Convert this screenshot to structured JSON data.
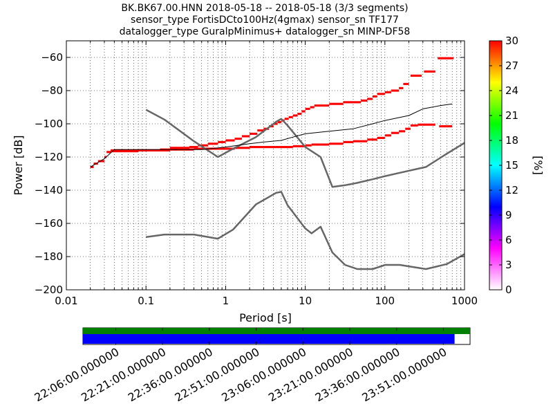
{
  "title_lines": [
    "BK.BK67.00.HNN   2018-05-18 -- 2018-05-18  (3/3 segments)",
    "sensor_type FortisDCto100Hz(4gmax) sensor_sn TF177",
    "datalogger_type GuralpMinimus+ datalogger_sn MINP-DF58"
  ],
  "colorbar": {
    "label": "[%]",
    "ticks": [
      "0",
      "3",
      "6",
      "9",
      "12",
      "15",
      "18",
      "21",
      "24",
      "27",
      "30"
    ],
    "stops": [
      "#ffffff",
      "#ff00ff",
      "#0000ff",
      "#00ffff",
      "#00ff00",
      "#ffff00",
      "#ff0000"
    ]
  },
  "timeline": {
    "labels": [
      "22:06:00.000000",
      "22:21:00.000000",
      "22:36:00.000000",
      "22:51:00.000000",
      "23:06:00.000000",
      "23:21:00.000000",
      "23:36:00.000000",
      "23:51:00.000000"
    ],
    "bar_colors": {
      "top": "#008000",
      "bottom": "#0000ff"
    },
    "coverage_fraction_top": 1.0,
    "coverage_fraction_bottom": 0.96
  },
  "chart_data": {
    "type": "line",
    "xlabel": "Period [s]",
    "ylabel": "Power [dB]",
    "x_scale": "log",
    "xlim": [
      0.01,
      1000
    ],
    "ylim": [
      -200,
      -50
    ],
    "x_ticks": [
      {
        "v": 0.01,
        "label": "0.01"
      },
      {
        "v": 0.1,
        "label": "0.1"
      },
      {
        "v": 1,
        "label": "1"
      },
      {
        "v": 10,
        "label": "10"
      },
      {
        "v": 100,
        "label": "100"
      },
      {
        "v": 1000,
        "label": "1000"
      }
    ],
    "y_ticks": [
      {
        "v": -200,
        "label": "−200"
      },
      {
        "v": -180,
        "label": "−180"
      },
      {
        "v": -160,
        "label": "−160"
      },
      {
        "v": -140,
        "label": "−140"
      },
      {
        "v": -120,
        "label": "−120"
      },
      {
        "v": -100,
        "label": "−100"
      },
      {
        "v": -80,
        "label": "−80"
      },
      {
        "v": -60,
        "label": "−60"
      }
    ],
    "grid": true,
    "series": [
      {
        "color": "#666666",
        "points": [
          [
            0.1,
            -91.5
          ],
          [
            0.17,
            -97.4
          ],
          [
            0.4,
            -110.5
          ],
          [
            0.8,
            -120
          ],
          [
            1.24,
            -115
          ],
          [
            2.4,
            -108
          ],
          [
            4.3,
            -98.8
          ],
          [
            5,
            -97
          ],
          [
            6,
            -101
          ],
          [
            10,
            -114
          ],
          [
            15.6,
            -120
          ],
          [
            21.9,
            -138
          ],
          [
            31.6,
            -137
          ],
          [
            45,
            -135.6
          ],
          [
            70,
            -133.4
          ],
          [
            101,
            -131.5
          ],
          [
            154,
            -129.5
          ],
          [
            328,
            -126
          ],
          [
            600,
            -118
          ],
          [
            1000,
            -111.5
          ]
        ]
      },
      {
        "color": "#666666",
        "points": [
          [
            0.1,
            -168.2
          ],
          [
            0.17,
            -166.7
          ],
          [
            0.4,
            -166.7
          ],
          [
            0.8,
            -169.2
          ],
          [
            1.24,
            -163.7
          ],
          [
            2.4,
            -148.6
          ],
          [
            4.3,
            -141.6
          ],
          [
            5,
            -141
          ],
          [
            6,
            -149
          ],
          [
            10,
            -163
          ],
          [
            12,
            -166
          ],
          [
            15.6,
            -162
          ],
          [
            21.9,
            -177.5
          ],
          [
            31.6,
            -185
          ],
          [
            45,
            -187.5
          ],
          [
            70,
            -187.5
          ],
          [
            101,
            -185
          ],
          [
            154,
            -185
          ],
          [
            328,
            -187.5
          ],
          [
            600,
            -184.5
          ],
          [
            1000,
            -178.5
          ]
        ]
      },
      {
        "color": "#000000",
        "points": [
          [
            0.02,
            -126
          ],
          [
            0.03,
            -121
          ],
          [
            0.04,
            -115.5
          ],
          [
            0.2,
            -115.5
          ],
          [
            0.5,
            -115.5
          ],
          [
            1,
            -114
          ],
          [
            2,
            -112
          ],
          [
            3,
            -111
          ],
          [
            5,
            -110
          ],
          [
            7,
            -108
          ],
          [
            10,
            -106
          ],
          [
            20,
            -104.5
          ],
          [
            40,
            -103
          ],
          [
            70,
            -100
          ],
          [
            100,
            -98
          ],
          [
            200,
            -95
          ],
          [
            300,
            -91
          ],
          [
            500,
            -89
          ],
          [
            700,
            -88
          ]
        ]
      }
    ],
    "histogram_segments": [
      {
        "x0": 0.02,
        "x1": 0.022,
        "y": -126
      },
      {
        "x0": 0.022,
        "x1": 0.025,
        "y": -124
      },
      {
        "x0": 0.025,
        "x1": 0.03,
        "y": -122.5
      },
      {
        "x0": 0.03,
        "x1": 0.032,
        "y": -120
      },
      {
        "x0": 0.032,
        "x1": 0.036,
        "y": -117
      },
      {
        "x0": 0.036,
        "x1": 0.2,
        "y": -116
      },
      {
        "x0": 0.2,
        "x1": 0.35,
        "y": -114.5
      },
      {
        "x0": 0.35,
        "x1": 0.45,
        "y": -114
      },
      {
        "x0": 0.45,
        "x1": 0.6,
        "y": -113
      },
      {
        "x0": 0.6,
        "x1": 0.8,
        "y": -112
      },
      {
        "x0": 0.8,
        "x1": 1.0,
        "y": -111
      },
      {
        "x0": 1.0,
        "x1": 1.3,
        "y": -110
      },
      {
        "x0": 1.3,
        "x1": 1.6,
        "y": -109
      },
      {
        "x0": 1.6,
        "x1": 2.0,
        "y": -107.5
      },
      {
        "x0": 2.0,
        "x1": 2.5,
        "y": -106
      },
      {
        "x0": 2.5,
        "x1": 3.0,
        "y": -104
      },
      {
        "x0": 3.0,
        "x1": 3.5,
        "y": -103
      },
      {
        "x0": 3.5,
        "x1": 4.0,
        "y": -101.5
      },
      {
        "x0": 4.0,
        "x1": 4.5,
        "y": -100
      },
      {
        "x0": 4.5,
        "x1": 5.0,
        "y": -99
      },
      {
        "x0": 5.0,
        "x1": 5.5,
        "y": -98
      },
      {
        "x0": 5.5,
        "x1": 6.2,
        "y": -97
      },
      {
        "x0": 6.2,
        "x1": 7.0,
        "y": -96
      },
      {
        "x0": 7.0,
        "x1": 8.0,
        "y": -95
      },
      {
        "x0": 8.0,
        "x1": 9.0,
        "y": -94
      },
      {
        "x0": 9.0,
        "x1": 10.0,
        "y": -92.5
      },
      {
        "x0": 10.0,
        "x1": 11.5,
        "y": -91
      },
      {
        "x0": 11.5,
        "x1": 13.0,
        "y": -90
      },
      {
        "x0": 13.0,
        "x1": 20.0,
        "y": -89
      },
      {
        "x0": 20.0,
        "x1": 30.0,
        "y": -88
      },
      {
        "x0": 30.0,
        "x1": 50.0,
        "y": -87
      },
      {
        "x0": 50.0,
        "x1": 60.0,
        "y": -86
      },
      {
        "x0": 60.0,
        "x1": 70.0,
        "y": -85
      },
      {
        "x0": 70.0,
        "x1": 80.0,
        "y": -83.5
      },
      {
        "x0": 80.0,
        "x1": 100.0,
        "y": -82
      },
      {
        "x0": 100.0,
        "x1": 120.0,
        "y": -81
      },
      {
        "x0": 120.0,
        "x1": 150.0,
        "y": -80
      },
      {
        "x0": 150.0,
        "x1": 170.0,
        "y": -78.5
      },
      {
        "x0": 170.0,
        "x1": 200.0,
        "y": -76
      },
      {
        "x0": 210.0,
        "x1": 290.0,
        "y": -71
      },
      {
        "x0": 310.0,
        "x1": 430.0,
        "y": -68.5
      },
      {
        "x0": 460.0,
        "x1": 730.0,
        "y": -60.5
      },
      {
        "x0": 0.036,
        "x1": 0.08,
        "y": -116.5
      },
      {
        "x0": 0.08,
        "x1": 0.15,
        "y": -116
      },
      {
        "x0": 0.15,
        "x1": 0.4,
        "y": -115.5
      },
      {
        "x0": 0.4,
        "x1": 0.9,
        "y": -115
      },
      {
        "x0": 0.9,
        "x1": 1.3,
        "y": -115
      },
      {
        "x0": 1.3,
        "x1": 2.0,
        "y": -114.5
      },
      {
        "x0": 2.0,
        "x1": 3.0,
        "y": -114
      },
      {
        "x0": 3.0,
        "x1": 7.0,
        "y": -114
      },
      {
        "x0": 7.0,
        "x1": 10.0,
        "y": -113.5
      },
      {
        "x0": 10.0,
        "x1": 12.0,
        "y": -113
      },
      {
        "x0": 12.0,
        "x1": 20.0,
        "y": -112.5
      },
      {
        "x0": 20.0,
        "x1": 30.0,
        "y": -112
      },
      {
        "x0": 30.0,
        "x1": 40.0,
        "y": -111
      },
      {
        "x0": 40.0,
        "x1": 60.0,
        "y": -110.5
      },
      {
        "x0": 60.0,
        "x1": 80.0,
        "y": -109.5
      },
      {
        "x0": 80.0,
        "x1": 100.0,
        "y": -108.5
      },
      {
        "x0": 100.0,
        "x1": 120.0,
        "y": -107
      },
      {
        "x0": 120.0,
        "x1": 150.0,
        "y": -105.5
      },
      {
        "x0": 150.0,
        "x1": 180.0,
        "y": -104.5
      },
      {
        "x0": 180.0,
        "x1": 210.0,
        "y": -103
      },
      {
        "x0": 210.0,
        "x1": 260.0,
        "y": -101
      },
      {
        "x0": 260.0,
        "x1": 430.0,
        "y": -100.5
      },
      {
        "x0": 480.0,
        "x1": 700.0,
        "y": -101.5
      }
    ]
  }
}
